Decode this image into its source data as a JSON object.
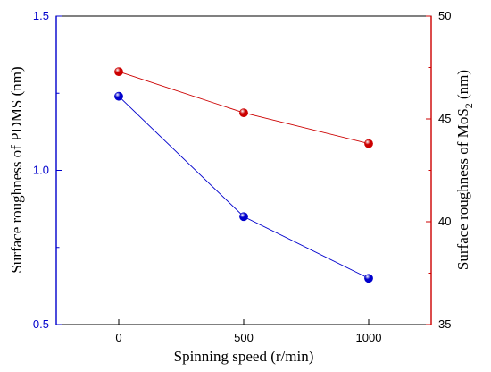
{
  "chart_data": {
    "type": "line",
    "xlabel": "Spinning speed (r/min)",
    "x": [
      0,
      500,
      1000
    ],
    "xlim": [
      -250,
      1250
    ],
    "xticks": [
      0,
      500,
      1000
    ],
    "yleft": {
      "label": "Surface roughness of PDMS (nm)",
      "lim": [
        0.5,
        1.5
      ],
      "ticks": [
        "0.5",
        "1.0",
        "1.5"
      ],
      "color": "#0000cc"
    },
    "yright": {
      "label_prefix": "Surface roughness of MoS",
      "label_sub": "2",
      "label_suffix": " (nm)",
      "lim": [
        35,
        50
      ],
      "ticks": [
        "35",
        "40",
        "45",
        "50"
      ],
      "color": "#cc0000"
    },
    "series": [
      {
        "axis": "left",
        "color": "#0000cc",
        "values": [
          1.24,
          0.85,
          0.65
        ]
      },
      {
        "axis": "right",
        "color": "#cc0000",
        "values": [
          47.3,
          45.3,
          43.8
        ]
      }
    ],
    "grid": false,
    "legend": "none"
  }
}
